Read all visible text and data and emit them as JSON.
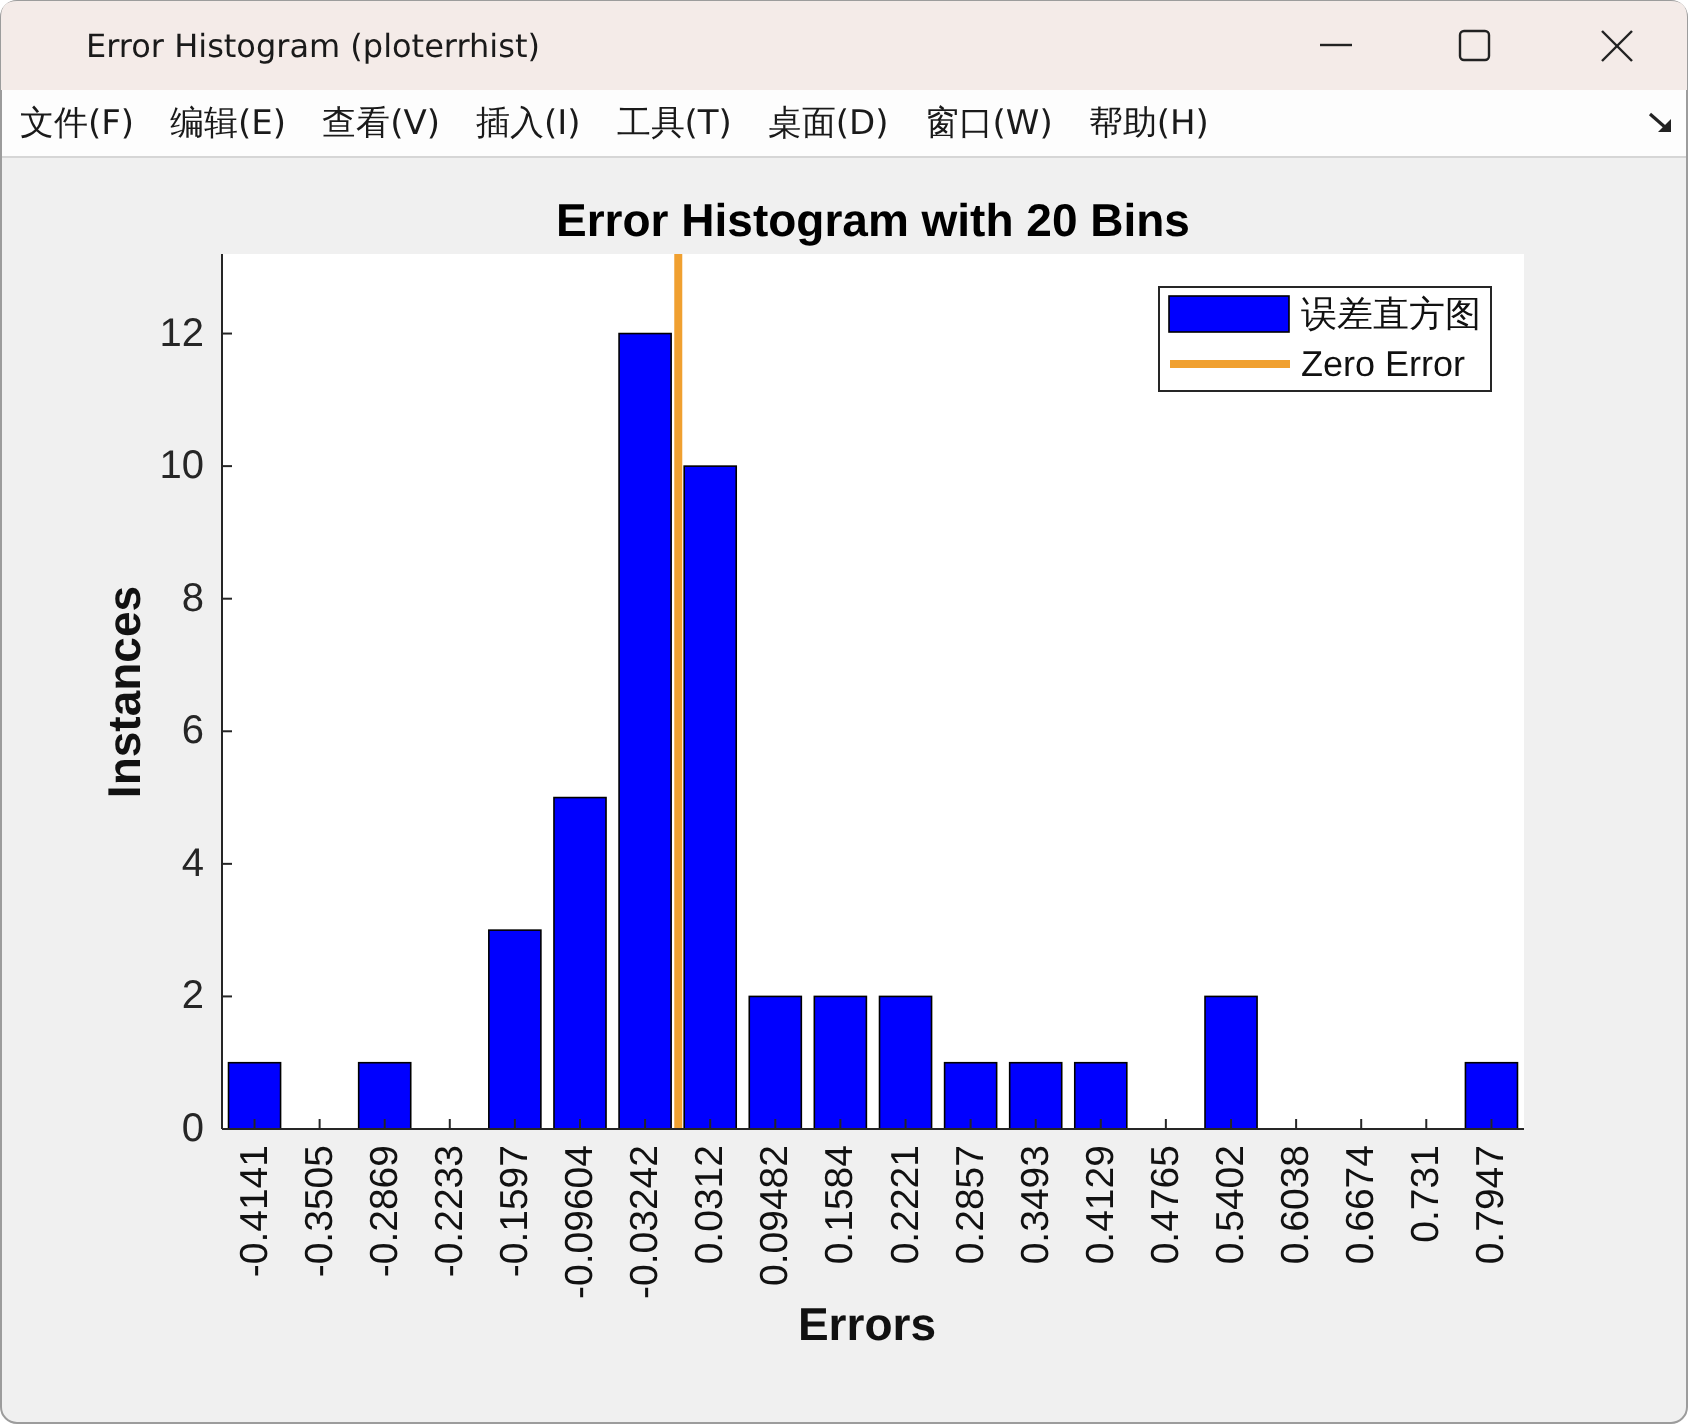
{
  "chart_data": {
    "type": "bar",
    "title": "Error Histogram with 20 Bins",
    "xlabel": "Errors",
    "ylabel": "Instances",
    "x": [
      -0.4141,
      -0.3505,
      -0.2869,
      -0.2233,
      -0.1597,
      -0.09604,
      -0.03242,
      0.0312,
      0.09482,
      0.1584,
      0.2221,
      0.2857,
      0.3493,
      0.4129,
      0.4765,
      0.5402,
      0.6038,
      0.6674,
      0.731,
      0.7947
    ],
    "series": [
      {
        "name": "误差直方图",
        "color": "#0000ff",
        "values": [
          1,
          0,
          1,
          0,
          3,
          5,
          12,
          10,
          2,
          2,
          2,
          1,
          1,
          1,
          0,
          2,
          0,
          0,
          0,
          1
        ]
      },
      {
        "name": "Zero Error",
        "type": "line",
        "color": "#f0a030",
        "x": [
          0,
          0
        ],
        "values": [
          0,
          13.2
        ]
      }
    ],
    "xlim": [
      -0.4459,
      0.8265
    ],
    "xticks": [
      -0.4141,
      -0.3505,
      -0.2869,
      -0.2233,
      -0.1597,
      -0.09604,
      -0.03242,
      0.0312,
      0.09482,
      0.1584,
      0.2221,
      0.2857,
      0.3493,
      0.4129,
      0.4765,
      0.5402,
      0.6038,
      0.6674,
      0.731,
      0.7947
    ],
    "ylim": [
      0,
      13.2
    ],
    "yticks": [
      0,
      2,
      4,
      6,
      8,
      10,
      12
    ],
    "legend": "top right",
    "annotations": [
      "Error Histogram (ploterrhist)",
      "文件(F)",
      "编辑(E)",
      "查看(V)",
      "插入(I)",
      "工具(T)",
      "桌面(D)",
      "窗口(W)",
      "帮助(H)"
    ]
  }
}
